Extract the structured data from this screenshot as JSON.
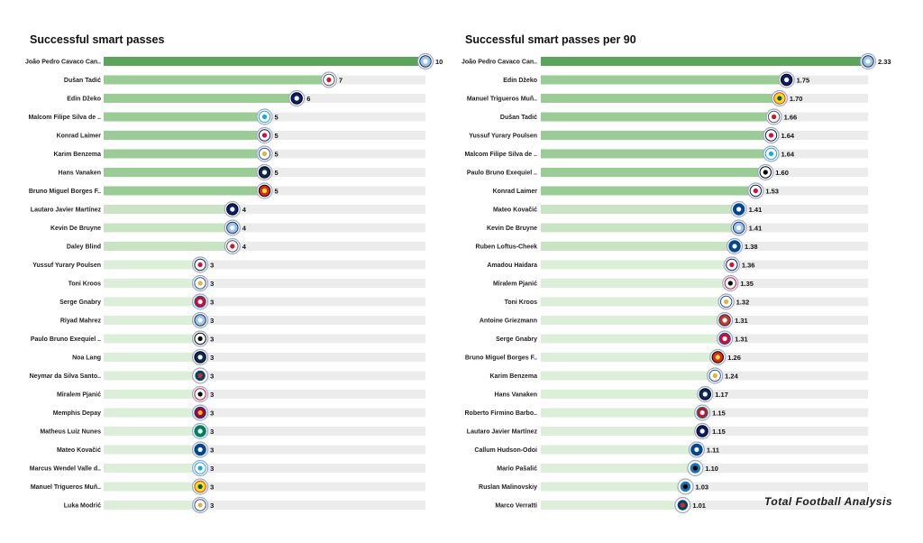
{
  "watermark": "Total Football Analysis",
  "colors": {
    "track": "#ececec",
    "band_high": "#5aa55a",
    "band_mid": "#9acd96",
    "band_low": "#c8e4c3",
    "band_pale": "#dcefd8"
  },
  "chart_data": [
    {
      "type": "bar",
      "orientation": "horizontal",
      "title": "Successful smart passes",
      "categories": [
        "João Pedro Cavaco Can..",
        "Dušan Tadić",
        "Edin Džeko",
        "Malcom Filipe Silva de ..",
        "Konrad Laimer",
        "Karim Benzema",
        "Hans Vanaken",
        "Bruno Miguel Borges F..",
        "Lautaro Javier Martínez",
        "Kevin De Bruyne",
        "Daley Blind",
        "Yussuf Yurary Poulsen",
        "Toni Kroos",
        "Serge  Gnabry",
        "Riyad Mahrez",
        "Paulo Bruno Exequiel ..",
        "Noa Lang",
        "Neymar da Silva Santo..",
        "Miralem Pjanić",
        "Memphis Depay",
        "Matheus Luiz Nunes",
        "Mateo Kovačić",
        "Marcus Wendel Valle d..",
        "Manuel Trigueros Muñ..",
        "Luka Modrić"
      ],
      "values": [
        10,
        7,
        6,
        5,
        5,
        5,
        5,
        5,
        4,
        4,
        4,
        3,
        3,
        3,
        3,
        3,
        3,
        3,
        3,
        3,
        3,
        3,
        3,
        3,
        3
      ],
      "value_labels": [
        "10",
        "7",
        "6",
        "5",
        "5",
        "5",
        "5",
        "5",
        "4",
        "4",
        "4",
        "3",
        "3",
        "3",
        "3",
        "3",
        "3",
        "3",
        "3",
        "3",
        "3",
        "3",
        "3",
        "3",
        "3"
      ],
      "clubs": [
        "man-city",
        "ajax",
        "inter",
        "zenit",
        "leipzig",
        "real-madrid",
        "club-brugge",
        "man-united",
        "inter",
        "man-city",
        "ajax",
        "leipzig",
        "real-madrid",
        "bayern",
        "man-city",
        "juventus",
        "club-brugge",
        "psg",
        "besiktas",
        "barcelona",
        "sporting",
        "chelsea",
        "zenit",
        "villarreal",
        "real-madrid"
      ],
      "xlim": [
        0,
        10
      ]
    },
    {
      "type": "bar",
      "orientation": "horizontal",
      "title": "Successful smart passes per 90",
      "categories": [
        "João Pedro Cavaco Can..",
        "Edin Džeko",
        "Manuel Trigueros Muñ..",
        "Dušan Tadić",
        "Yussuf Yurary Poulsen",
        "Malcom Filipe Silva de ..",
        "Paulo Bruno Exequiel ..",
        "Konrad Laimer",
        "Mateo Kovačić",
        "Kevin De Bruyne",
        "Ruben Loftus-Cheek",
        "Amadou Haidara",
        "Miralem Pjanić",
        "Toni Kroos",
        "Antoine Griezmann",
        "Serge  Gnabry",
        "Bruno Miguel Borges F..",
        "Karim Benzema",
        "Hans Vanaken",
        "Roberto Firmino Barbo..",
        "Lautaro Javier Martínez",
        "Callum Hudson-Odoi",
        "Mario Pašalić",
        "Ruslan Malinovskiy",
        "Marco Verratti"
      ],
      "values": [
        2.33,
        1.75,
        1.7,
        1.66,
        1.64,
        1.64,
        1.6,
        1.53,
        1.41,
        1.41,
        1.38,
        1.36,
        1.35,
        1.32,
        1.31,
        1.31,
        1.26,
        1.24,
        1.17,
        1.15,
        1.15,
        1.11,
        1.1,
        1.03,
        1.01
      ],
      "value_labels": [
        "2.33",
        "1.75",
        "1.70",
        "1.66",
        "1.64",
        "1.64",
        "1.60",
        "1.53",
        "1.41",
        "1.41",
        "1.38",
        "1.36",
        "1.35",
        "1.32",
        "1.31",
        "1.31",
        "1.26",
        "1.24",
        "1.17",
        "1.15",
        "1.15",
        "1.11",
        "1.10",
        "1.03",
        "1.01"
      ],
      "clubs": [
        "man-city",
        "inter",
        "villarreal",
        "ajax",
        "leipzig",
        "zenit",
        "juventus",
        "leipzig",
        "chelsea",
        "man-city",
        "chelsea",
        "leipzig",
        "besiktas",
        "real-madrid",
        "atletico",
        "bayern",
        "man-united",
        "real-madrid",
        "club-brugge",
        "liverpool",
        "inter",
        "chelsea",
        "atalanta",
        "atalanta",
        "psg"
      ],
      "xlim": [
        0,
        2.33
      ]
    }
  ],
  "club_colors": {
    "man-city": [
      "#98c5e9",
      "#ffffff",
      "#1c2c5b"
    ],
    "ajax": [
      "#ffffff",
      "#d2122e",
      "#555555"
    ],
    "inter": [
      "#0a1f6b",
      "#ffffff",
      "#000000"
    ],
    "zenit": [
      "#ffffff",
      "#1ba7e0",
      "#1ba7e0"
    ],
    "leipzig": [
      "#ffffff",
      "#dd0741",
      "#0c2043"
    ],
    "real-madrid": [
      "#ffffff",
      "#e2b43f",
      "#2f4f9a"
    ],
    "club-brugge": [
      "#0d2a5c",
      "#ffffff",
      "#000000"
    ],
    "man-united": [
      "#da291c",
      "#fbe122",
      "#000000"
    ],
    "bayern": [
      "#dc052d",
      "#ffffff",
      "#0066b2"
    ],
    "juventus": [
      "#ffffff",
      "#000000",
      "#000000"
    ],
    "psg": [
      "#004170",
      "#da291c",
      "#ffffff"
    ],
    "besiktas": [
      "#ffffff",
      "#000000",
      "#c8102e"
    ],
    "barcelona": [
      "#a50044",
      "#edbb00",
      "#004d98"
    ],
    "sporting": [
      "#00805e",
      "#ffffff",
      "#00805e"
    ],
    "chelsea": [
      "#034694",
      "#ffffff",
      "#034694"
    ],
    "villarreal": [
      "#fde100",
      "#005187",
      "#e2352b"
    ],
    "atletico": [
      "#cb3524",
      "#ffffff",
      "#272e61"
    ],
    "liverpool": [
      "#c8102e",
      "#ffffff",
      "#00a398"
    ],
    "atalanta": [
      "#1e71b8",
      "#000000",
      "#ffffff"
    ]
  }
}
